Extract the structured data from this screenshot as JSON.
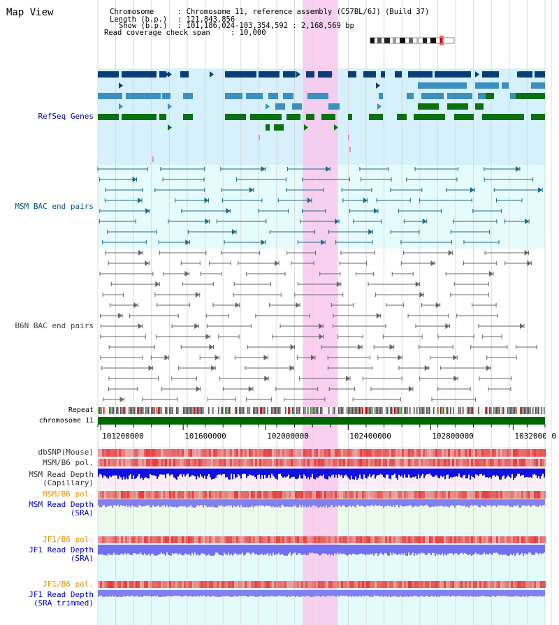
{
  "page": {
    "title": "Map View"
  },
  "info": {
    "chromosome_key": "Chromosome",
    "chromosome_val": ": Chromosome 11, reference assembly (C57BL/6J) (Build 37)",
    "length_key": "Length (b.p.)",
    "length_val": ": 121,843,856",
    "show_key": "Show (b.p.)",
    "show_val": ": 101,186,024-103,354,592 : 2,168,569 bp",
    "coverage_key": "Read coverage check span",
    "coverage_val": ": 10,000"
  },
  "tracks": {
    "refseq": {
      "label": "RefSeq Genes",
      "color": "#000099"
    },
    "msm_bac": {
      "label": "MSM BAC end pairs",
      "color": "#005577"
    },
    "b6n_bac": {
      "label": "B6N BAC end pairs",
      "color": "#444444"
    },
    "repeat": {
      "label": "Repeat",
      "color": "#000000"
    },
    "chromosome": {
      "label": "chromosome 11",
      "color": "#000000"
    },
    "dbsnp": {
      "label": "dbSNP(Mouse)",
      "color": "#333333"
    },
    "msm_b6_pol_1": {
      "label": "MSM/B6 pol.",
      "color": "#333333"
    },
    "msm_depth_cap": {
      "label": "MSM Read Depth\n(Capillary)",
      "color": "#333333"
    },
    "msm_b6_pol_2": {
      "label": "MSM/B6 pol.",
      "color": "#e69500"
    },
    "msm_depth_sra": {
      "label": "MSM Read Depth\n(SRA)",
      "color": "#0000cc"
    },
    "jf1_b6_pol_1": {
      "label": "JF1/B6 pol.",
      "color": "#e69500"
    },
    "jf1_depth_sra": {
      "label": "JF1 Read Depth\n(SRA)",
      "color": "#0000cc"
    },
    "jf1_b6_pol_2": {
      "label": "JF1/B6 pol.",
      "color": "#e69500"
    },
    "jf1_depth_trim": {
      "label": "JF1 Read Depth\n(SRA trimmed)",
      "color": "#0000cc"
    }
  },
  "axis": {
    "ticks": [
      101200000,
      101600000,
      102000000,
      102400000,
      102800000,
      103200000
    ],
    "view_start": 101186024,
    "view_end": 103354592
  },
  "highlight": {
    "start": 102180000,
    "end": 102350000
  },
  "colors": {
    "refseq_dark": "#0a3d78",
    "refseq_mid": "#3d8fbf",
    "refseq_green": "#0a7010",
    "msm_line": "#1a6a8a",
    "b6n_line": "#666666",
    "highlight": "#f8c8ec",
    "chrom_bar": "#006600"
  }
}
